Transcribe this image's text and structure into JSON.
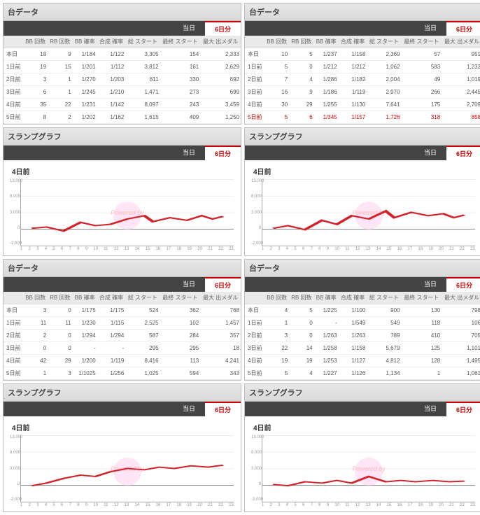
{
  "sections": {
    "dataTitle": "台データ",
    "graphTitle": "スランプグラフ"
  },
  "tabs": {
    "current": "当日",
    "six": "6日分"
  },
  "columns": [
    "",
    "BB\n回数",
    "RB\n回数",
    "BB\n確率",
    "合成\n確率",
    "総\nスタート",
    "最終\nスタート",
    "最大\n出メダル"
  ],
  "redRowIdx": {
    "0": -1,
    "1": 5,
    "2": -1,
    "3": -1
  },
  "tables": [
    [
      [
        "本日",
        "18",
        "9",
        "1/184",
        "1/122",
        "3,305",
        "154",
        "2,333"
      ],
      [
        "1日前",
        "19",
        "15",
        "1/201",
        "1/112",
        "3,812",
        "161",
        "2,629"
      ],
      [
        "2日前",
        "3",
        "1",
        "1/270",
        "1/203",
        "811",
        "330",
        "692"
      ],
      [
        "3日前",
        "6",
        "1",
        "1/245",
        "1/210",
        "1,471",
        "273",
        "699"
      ],
      [
        "4日前",
        "35",
        "22",
        "1/231",
        "1/142",
        "8,097",
        "243",
        "3,459"
      ],
      [
        "5日前",
        "8",
        "2",
        "1/202",
        "1/162",
        "1,615",
        "409",
        "1,250"
      ]
    ],
    [
      [
        "本日",
        "10",
        "5",
        "1/237",
        "1/158",
        "2,369",
        "57",
        "951"
      ],
      [
        "1日前",
        "5",
        "0",
        "1/212",
        "1/212",
        "1,062",
        "583",
        "1,233"
      ],
      [
        "2日前",
        "7",
        "4",
        "1/286",
        "1/182",
        "2,004",
        "49",
        "1,019"
      ],
      [
        "3日前",
        "16",
        "9",
        "1/186",
        "1/119",
        "2,970",
        "266",
        "2,445"
      ],
      [
        "4日前",
        "30",
        "29",
        "1/255",
        "1/130",
        "7,641",
        "175",
        "2,709"
      ],
      [
        "5日前",
        "5",
        "6",
        "1/345",
        "1/157",
        "1,726",
        "318",
        "858"
      ]
    ],
    [
      [
        "本日",
        "3",
        "0",
        "1/175",
        "1/175",
        "524",
        "362",
        "768"
      ],
      [
        "1日前",
        "11",
        "11",
        "1/230",
        "1/115",
        "2,525",
        "102",
        "1,457"
      ],
      [
        "2日前",
        "2",
        "0",
        "1/294",
        "1/294",
        "587",
        "284",
        "357"
      ],
      [
        "3日前",
        "0",
        "0",
        "-",
        "-",
        "295",
        "295",
        "18"
      ],
      [
        "4日前",
        "42",
        "29",
        "1/200",
        "1/119",
        "8,416",
        "113",
        "4,241"
      ],
      [
        "5日前",
        "1",
        "3",
        "1/1025",
        "1/256",
        "1,025",
        "594",
        "343"
      ]
    ],
    [
      [
        "本日",
        "4",
        "5",
        "1/225",
        "1/100",
        "900",
        "130",
        "798"
      ],
      [
        "1日前",
        "1",
        "0",
        "-",
        "1/549",
        "549",
        "118",
        "106"
      ],
      [
        "2日前",
        "3",
        "0",
        "1/263",
        "1/263",
        "789",
        "410",
        "705"
      ],
      [
        "3日前",
        "22",
        "14",
        "1/258",
        "1/158",
        "5,679",
        "125",
        "1,101"
      ],
      [
        "4日前",
        "19",
        "19",
        "1/253",
        "1/127",
        "4,812",
        "128",
        "1,495"
      ],
      [
        "5日前",
        "5",
        "4",
        "1/227",
        "1/126",
        "1,134",
        "1",
        "1,061"
      ]
    ]
  ],
  "chart": {
    "title": "4日前",
    "watermark": "Powered by",
    "ylabels": [
      "13,000",
      "8,000",
      "3,000",
      "0",
      "-2,000"
    ],
    "xlabels": [
      "1",
      "2",
      "3",
      "4",
      "5",
      "6",
      "7",
      "8",
      "9",
      "10",
      "11",
      "12",
      "13",
      "14",
      "15",
      "16",
      "17",
      "18",
      "19",
      "20",
      "21",
      "22",
      "23"
    ],
    "lineColor": "#d2232a",
    "lineWidth": 2,
    "zeroPct": 75
  },
  "paths": [
    "M 5 74 L 12 72 L 20 78 L 28 65 L 35 70 L 42 68 L 50 60 L 58 55 L 62 64 L 70 58 L 78 62 L 85 55 L 90 60 L 95 56",
    "M 5 74 L 12 70 L 20 76 L 28 62 L 35 68 L 42 55 L 50 60 L 58 48 L 62 58 L 70 50 L 78 55 L 85 52 L 90 58 L 95 54",
    "M 5 76 L 12 72 L 20 65 L 28 60 L 35 62 L 42 55 L 50 50 L 58 52 L 65 48 L 72 50 L 80 46 L 88 48 L 95 45",
    "M 5 74 L 12 76 L 20 70 L 28 72 L 35 68 L 42 72 L 50 62 L 58 70 L 65 68 L 72 70 L 80 68 L 88 70 L 95 69"
  ]
}
